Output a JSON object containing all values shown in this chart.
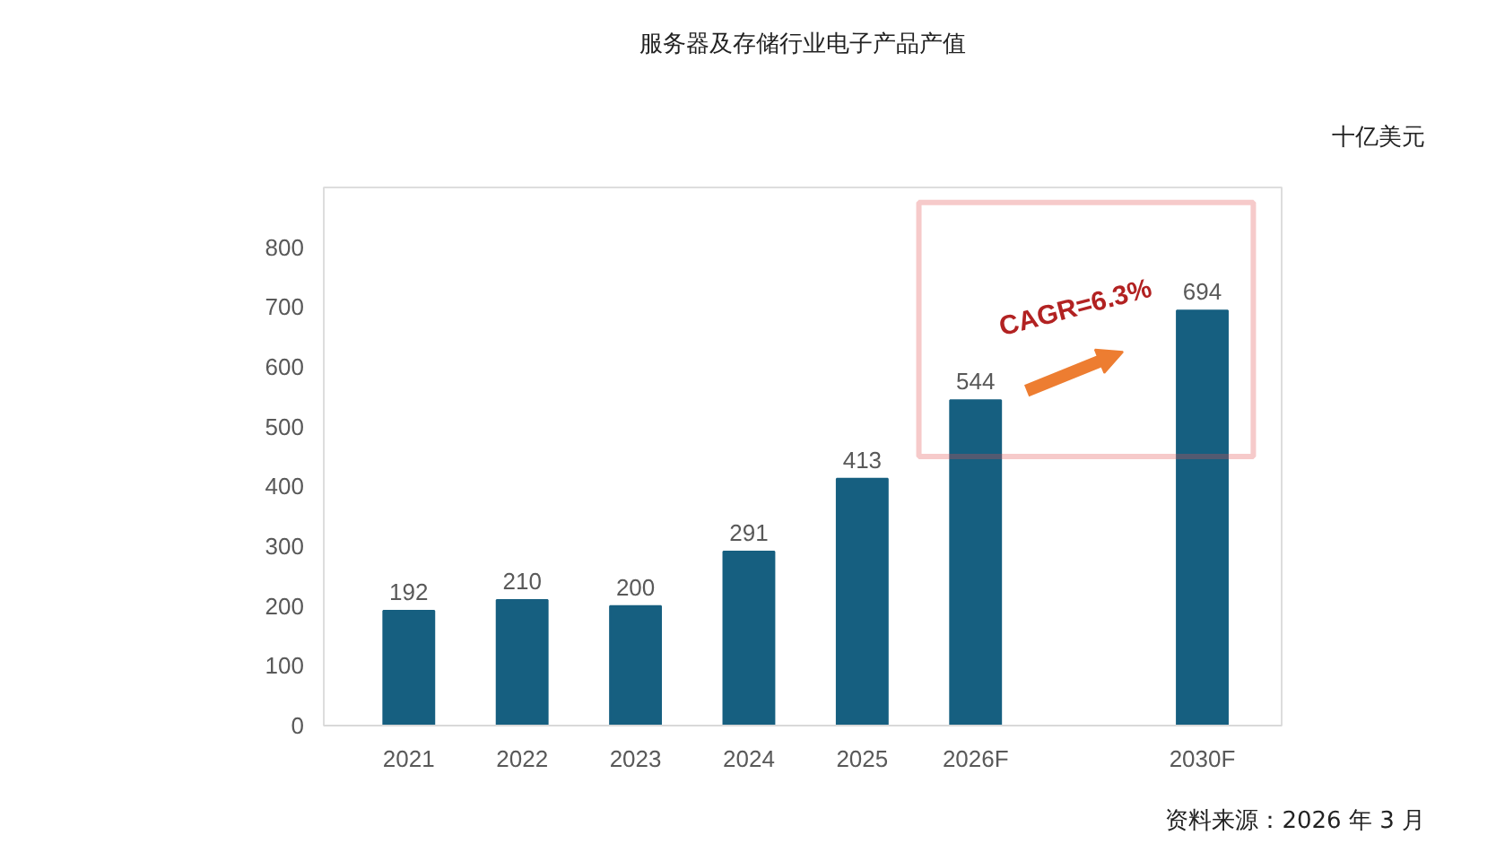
{
  "chart_data": {
    "type": "bar",
    "title": "服务器及存储行业电子产品产值",
    "categories": [
      "2021",
      "2022",
      "2023",
      "2024",
      "2025",
      "2026F",
      null,
      "2030F"
    ],
    "values": [
      192,
      210,
      200,
      291,
      413,
      544,
      null,
      694
    ],
    "color": "#165f80",
    "ylim": [
      0,
      900
    ],
    "yticks": [
      0,
      100,
      200,
      300,
      400,
      500,
      600,
      700,
      800
    ],
    "grid": false,
    "data_labels": true,
    "annotations": [
      "十亿美元",
      "CAGR=6.3%",
      "资料来源：2026 年 3 月"
    ]
  }
}
